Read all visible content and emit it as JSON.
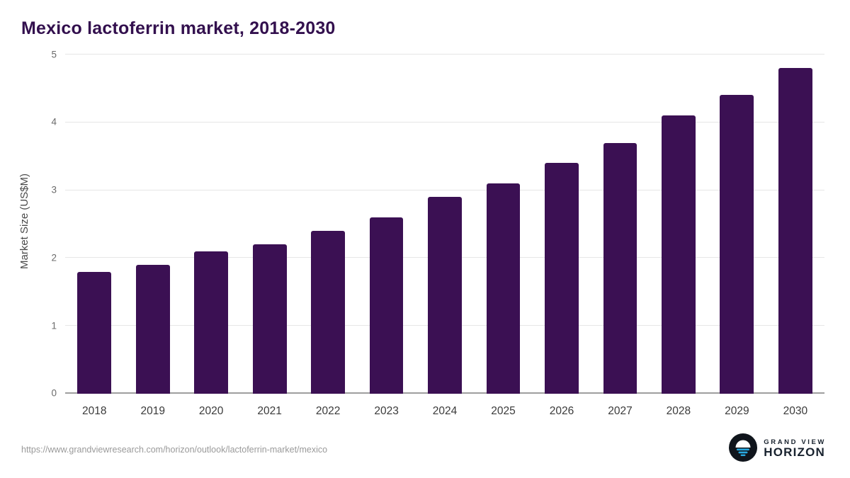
{
  "title": "Mexico lactoferrin market, 2018-2030",
  "chart_data": {
    "type": "bar",
    "categories": [
      "2018",
      "2019",
      "2020",
      "2021",
      "2022",
      "2023",
      "2024",
      "2025",
      "2026",
      "2027",
      "2028",
      "2029",
      "2030"
    ],
    "values": [
      1.8,
      1.9,
      2.1,
      2.2,
      2.4,
      2.6,
      2.9,
      3.1,
      3.4,
      3.7,
      4.1,
      4.4,
      4.8
    ],
    "title": "Mexico lactoferrin market, 2018-2030",
    "xlabel": "",
    "ylabel": "Market Size (US$M)",
    "ylim": [
      0,
      5
    ],
    "yticks": [
      0,
      1,
      2,
      3,
      4,
      5
    ],
    "grid": "horizontal",
    "legend": "none",
    "bar_color": "#3b1053",
    "title_color": "#33104e"
  },
  "footer": {
    "source_url": "https://www.grandviewresearch.com/horizon/outlook/lactoferrin-market/mexico",
    "brand_name": "GRAND VIEW",
    "brand_product": "HORIZON",
    "logo_icon": "horizon-sun-icon",
    "logo_accent_color": "#29aae1"
  }
}
